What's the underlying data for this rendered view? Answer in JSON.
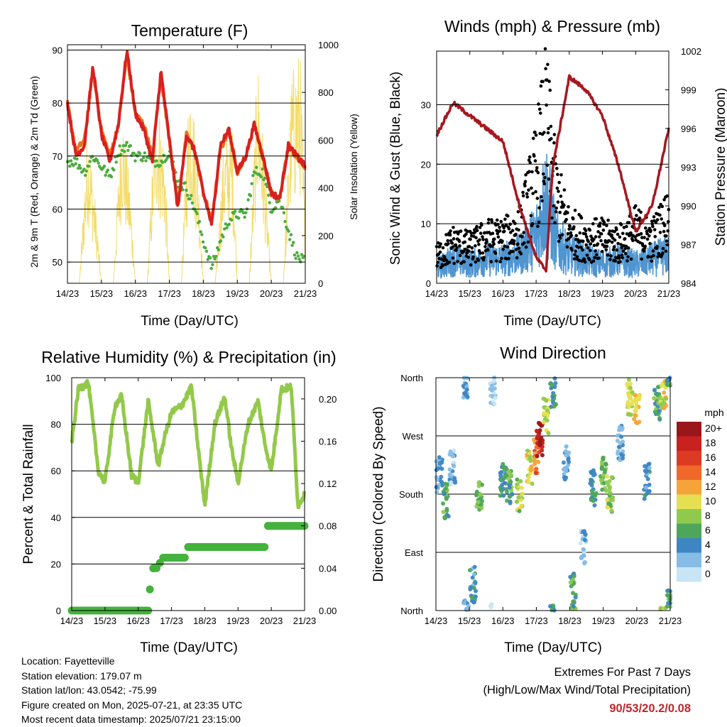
{
  "colors": {
    "temp_red": "#d7211f",
    "temp_orange": "#ef6f1c",
    "dewpoint_green": "#4aab3c",
    "solar_yellow": "#f3dc6a",
    "wind_blue": "#4f95d0",
    "gust_black": "#000000",
    "pressure_maroon": "#a6181f",
    "rh_green": "#93c94a",
    "precip_green": "#44b23c",
    "extremes_red": "#c0262d"
  },
  "x_ticks": [
    "14/23",
    "15/23",
    "16/23",
    "17/23",
    "18/23",
    "19/23",
    "20/23",
    "21/23"
  ],
  "panels": {
    "temperature": {
      "title": "Temperature (F)",
      "xlabel": "Time (Day/UTC)",
      "ylabel_left": "2m & 9m T (Red, Orange) & 2m Td (Green)",
      "ylabel_right": "Solar Insolation (Yellow)",
      "left_ticks": [
        "50",
        "60",
        "70",
        "80",
        "90"
      ],
      "right_ticks": [
        "0",
        "200",
        "400",
        "600",
        "800",
        "1000"
      ]
    },
    "winds": {
      "title": "Winds (mph) & Pressure (mb)",
      "xlabel": "Time (Day/UTC)",
      "ylabel_left": "Sonic Wind & Gust (Blue, Black)",
      "ylabel_right": "Station Pressure (Maroon)",
      "left_ticks": [
        "0",
        "10",
        "20",
        "30"
      ],
      "right_ticks": [
        "984",
        "987",
        "990",
        "993",
        "996",
        "999",
        "1002"
      ]
    },
    "humidity": {
      "title": "Relative Humidity (%) & Precipitation (in)",
      "xlabel": "Time (Day/UTC)",
      "ylabel_left": "Percent & Total Rainfall",
      "left_ticks": [
        "0",
        "20",
        "40",
        "60",
        "80",
        "100"
      ],
      "right_ticks": [
        "0.00",
        "0.04",
        "0.08",
        "0.12",
        "0.16",
        "0.20"
      ]
    },
    "direction": {
      "title": "Wind Direction",
      "xlabel": "Time (Day/UTC)",
      "ylabel_left": "Direction (Colored By Speed)",
      "left_ticks": [
        "North",
        "East",
        "South",
        "West",
        "North"
      ],
      "legend_title": "mph",
      "legend_labels": [
        "20+",
        "18",
        "16",
        "14",
        "12",
        "10",
        "8",
        "6",
        "4",
        "2",
        "0"
      ],
      "legend_colors": [
        "#99161a",
        "#c8211f",
        "#dd3a24",
        "#f0682a",
        "#f6a33b",
        "#e7df52",
        "#8fca4f",
        "#4ea65a",
        "#3e86c3",
        "#85bde6",
        "#c8e5f6"
      ]
    }
  },
  "station_info": {
    "location": "Location: Fayetteville",
    "elevation": "Station elevation: 179.07 m",
    "latlon": "Station lat/lon: 43.0542; -75.99",
    "created": "Figure created on Mon, 2025-07-21, at 23:35 UTC",
    "recent": "Most recent data timestamp: 2025/07/21 23:15:00"
  },
  "extremes": {
    "title": "Extremes For Past 7 Days",
    "subtitle": "(High/Low/Max Wind/Total Precipitation)",
    "values": "90/53/20.2/0.08"
  },
  "chart_data": [
    {
      "type": "line",
      "x_unit": "day index (0 = 14/23 ... 7 = 21/23)",
      "ylim_left": [
        46,
        91
      ],
      "ylim_right": [
        0,
        1000
      ],
      "series": [
        {
          "name": "2m T",
          "axis": "left",
          "x": [
            0,
            0.25,
            0.5,
            0.75,
            1.0,
            1.25,
            1.5,
            1.75,
            2.0,
            2.25,
            2.5,
            2.75,
            3.0,
            3.25,
            3.5,
            3.75,
            4.0,
            4.25,
            4.5,
            4.75,
            5.0,
            5.25,
            5.5,
            5.75,
            6.0,
            6.25,
            6.5,
            6.75,
            7.0
          ],
          "y": [
            80,
            70,
            72,
            87,
            74,
            69,
            76,
            90,
            78,
            75,
            69,
            86,
            73,
            60,
            74,
            71,
            63,
            57,
            72,
            75,
            67,
            70,
            76,
            70,
            63,
            62,
            72,
            70,
            68
          ]
        },
        {
          "name": "9m T",
          "axis": "left",
          "x": [
            0,
            0.25,
            0.5,
            0.75,
            1.0,
            1.25,
            1.5,
            1.75,
            2.0,
            2.25,
            2.5,
            2.75,
            3.0,
            3.25,
            3.5,
            3.75,
            4.0,
            4.25,
            4.5,
            4.75,
            5.0,
            5.25,
            5.5,
            5.75,
            6.0,
            6.25,
            6.5,
            6.75,
            7.0
          ],
          "y": [
            80,
            71,
            73,
            86,
            75,
            70,
            76,
            89,
            78,
            76,
            70,
            85,
            73,
            61,
            74,
            71,
            63,
            58,
            71,
            75,
            67,
            70,
            76,
            70,
            63,
            62,
            72,
            70,
            68
          ]
        },
        {
          "name": "2m Td",
          "axis": "left",
          "x": [
            0,
            0.25,
            0.5,
            0.75,
            1.0,
            1.25,
            1.5,
            1.75,
            2.0,
            2.25,
            2.5,
            2.75,
            3.0,
            3.25,
            3.5,
            3.75,
            4.0,
            4.25,
            4.5,
            4.75,
            5.0,
            5.25,
            5.5,
            5.75,
            6.0,
            6.25,
            6.5,
            6.75,
            7.0
          ],
          "y": [
            69,
            69,
            67,
            70,
            68,
            66,
            71,
            72,
            70,
            70,
            69,
            69,
            71,
            65,
            64,
            60,
            54,
            49,
            54,
            58,
            59,
            59,
            67,
            67,
            60,
            62,
            56,
            51,
            50
          ]
        },
        {
          "name": "Solar Insolation",
          "axis": "right",
          "x": [
            0,
            0.35,
            0.6,
            0.85,
            1.0,
            1.35,
            1.6,
            1.85,
            2.0,
            2.35,
            2.6,
            2.85,
            3.0,
            3.35,
            3.6,
            3.85,
            4.0,
            4.35,
            4.6,
            4.85,
            5.0,
            5.35,
            5.6,
            5.85,
            6.0,
            6.35,
            6.6,
            6.85,
            7.0
          ],
          "y": [
            0,
            0,
            700,
            300,
            0,
            0,
            780,
            400,
            0,
            0,
            850,
            600,
            0,
            0,
            950,
            500,
            0,
            0,
            600,
            700,
            0,
            0,
            980,
            400,
            0,
            0,
            900,
            1000,
            250
          ]
        }
      ]
    },
    {
      "type": "line",
      "x_unit": "day index",
      "ylim_left": [
        0,
        39
      ],
      "ylim_right": [
        984,
        1002
      ],
      "series": [
        {
          "name": "Sonic Wind",
          "axis": "left",
          "x": [
            0,
            0.5,
            1.0,
            1.5,
            2.0,
            2.5,
            3.0,
            3.3,
            3.6,
            4.0,
            4.5,
            5.0,
            5.5,
            6.0,
            6.5,
            7.0
          ],
          "y": [
            3,
            5,
            4,
            5,
            5,
            6,
            10,
            18,
            9,
            6,
            5,
            4,
            5,
            4,
            5,
            6
          ]
        },
        {
          "name": "Gust",
          "axis": "left",
          "x": [
            0,
            0.5,
            1.0,
            1.5,
            2.0,
            2.5,
            3.0,
            3.3,
            3.6,
            4.0,
            4.5,
            5.0,
            5.5,
            6.0,
            6.5,
            7.0
          ],
          "y": [
            6,
            9,
            8,
            10,
            10,
            12,
            25,
            37,
            20,
            12,
            10,
            10,
            9,
            12,
            10,
            15
          ]
        },
        {
          "name": "Station Pressure",
          "axis": "right",
          "x": [
            0,
            0.5,
            0.75,
            1.0,
            1.5,
            2.0,
            2.5,
            3.0,
            3.3,
            3.5,
            4.0,
            4.5,
            5.0,
            5.5,
            6.0,
            6.5,
            7.0
          ],
          "y": [
            995.5,
            998,
            997.5,
            997,
            996,
            995,
            990,
            986,
            985,
            993,
            1000,
            999,
            997,
            993,
            988,
            990,
            996
          ]
        }
      ]
    },
    {
      "type": "line",
      "x_unit": "day index",
      "ylim_left": [
        0,
        100
      ],
      "ylim_right": [
        0,
        0.22
      ],
      "series": [
        {
          "name": "Relative Humidity",
          "axis": "left",
          "x": [
            0,
            0.2,
            0.5,
            0.8,
            1.0,
            1.3,
            1.5,
            1.8,
            2.0,
            2.3,
            2.6,
            2.8,
            3.0,
            3.3,
            3.6,
            3.8,
            4.0,
            4.3,
            4.6,
            4.8,
            5.0,
            5.3,
            5.6,
            5.8,
            6.0,
            6.3,
            6.6,
            6.8,
            7.0
          ],
          "y": [
            72,
            95,
            98,
            60,
            55,
            88,
            92,
            58,
            55,
            90,
            62,
            75,
            85,
            88,
            96,
            70,
            45,
            80,
            92,
            70,
            55,
            80,
            90,
            72,
            60,
            95,
            96,
            45,
            50
          ]
        },
        {
          "name": "Total Precipitation",
          "axis": "right",
          "x": [
            0,
            2.3,
            2.35,
            2.45,
            2.55,
            2.65,
            2.75,
            2.9,
            3.0,
            3.4,
            3.5,
            4.8,
            4.9,
            5.8,
            5.9,
            7.0
          ],
          "y": [
            0,
            0,
            0.02,
            0.04,
            0.04,
            0.045,
            0.05,
            0.05,
            0.05,
            0.05,
            0.06,
            0.06,
            0.06,
            0.06,
            0.08,
            0.08
          ]
        }
      ]
    },
    {
      "type": "scatter",
      "x_unit": "day index",
      "y_unit": "direction (0 = North, 90 = East, 180 = South, 270 = West, 360 = North)",
      "ylim": [
        0,
        360
      ],
      "color_by": "speed (mph)",
      "points": [
        {
          "x": 0.1,
          "y": 210,
          "speed": 3
        },
        {
          "x": 0.3,
          "y": 170,
          "speed": 6
        },
        {
          "x": 0.5,
          "y": 220,
          "speed": 2
        },
        {
          "x": 0.9,
          "y": 350,
          "speed": 3
        },
        {
          "x": 1.1,
          "y": 40,
          "speed": 4
        },
        {
          "x": 1.3,
          "y": 180,
          "speed": 7
        },
        {
          "x": 1.7,
          "y": 345,
          "speed": 1
        },
        {
          "x": 2.0,
          "y": 200,
          "speed": 5
        },
        {
          "x": 2.2,
          "y": 190,
          "speed": 6
        },
        {
          "x": 2.5,
          "y": 180,
          "speed": 8
        },
        {
          "x": 2.8,
          "y": 220,
          "speed": 10
        },
        {
          "x": 3.0,
          "y": 240,
          "speed": 14
        },
        {
          "x": 3.1,
          "y": 265,
          "speed": 19
        },
        {
          "x": 3.3,
          "y": 300,
          "speed": 9
        },
        {
          "x": 3.5,
          "y": 340,
          "speed": 5
        },
        {
          "x": 3.9,
          "y": 230,
          "speed": 3
        },
        {
          "x": 4.1,
          "y": 30,
          "speed": 6
        },
        {
          "x": 4.4,
          "y": 100,
          "speed": 2
        },
        {
          "x": 4.7,
          "y": 190,
          "speed": 5
        },
        {
          "x": 5.0,
          "y": 210,
          "speed": 7
        },
        {
          "x": 5.2,
          "y": 180,
          "speed": 8
        },
        {
          "x": 5.5,
          "y": 260,
          "speed": 3
        },
        {
          "x": 5.8,
          "y": 330,
          "speed": 9
        },
        {
          "x": 6.0,
          "y": 310,
          "speed": 11
        },
        {
          "x": 6.3,
          "y": 200,
          "speed": 4
        },
        {
          "x": 6.6,
          "y": 320,
          "speed": 6
        },
        {
          "x": 6.8,
          "y": 340,
          "speed": 10
        },
        {
          "x": 7.0,
          "y": 5,
          "speed": 6
        }
      ]
    }
  ]
}
